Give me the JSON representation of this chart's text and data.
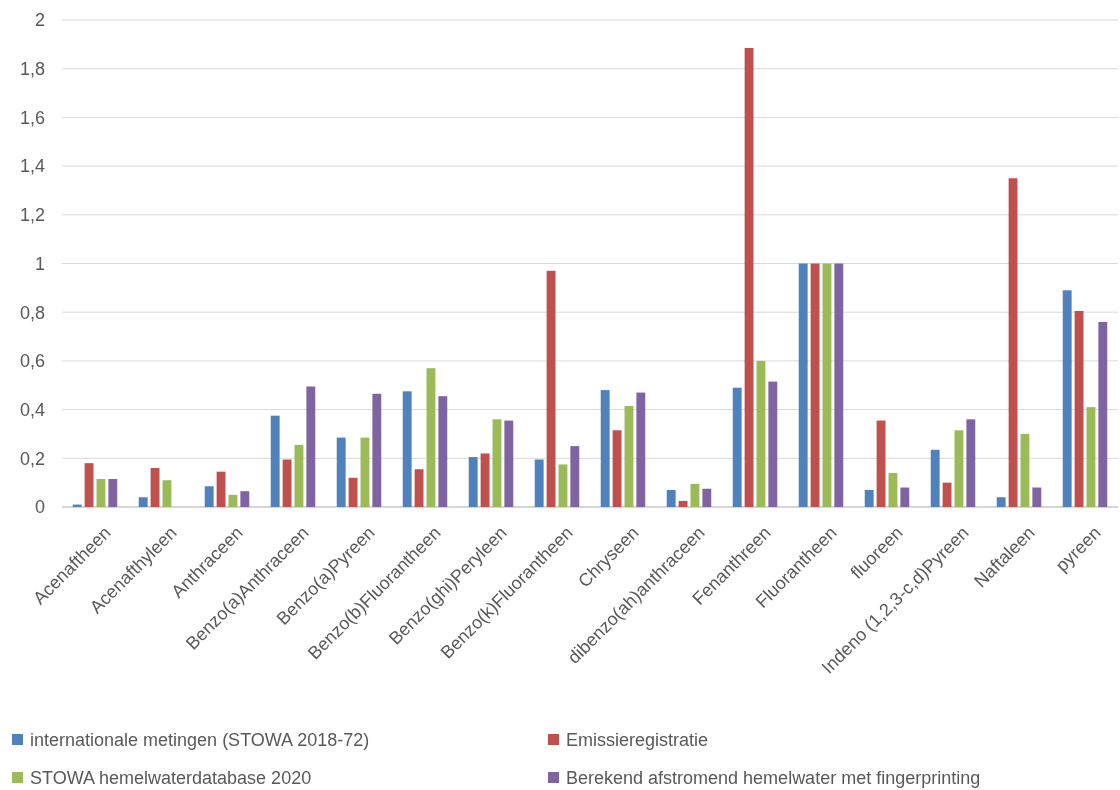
{
  "chart_data": {
    "type": "bar",
    "categories": [
      "Acenaftheen",
      "Acenafthyleen",
      "Anthraceen",
      "Benzo(a)Anthraceen",
      "Benzo(a)Pyreen",
      "Benzo(b)Fluorantheen",
      "Benzo(ghi)Peryleen",
      "Benzo(k)Fluorantheen",
      "Chryseen",
      "dibenzo(ah)anthraceen",
      "Fenanthreen",
      "Fluorantheen",
      "fluoreen",
      "Indeno (1,2,3-c,d)Pyreen",
      "Naftaleen",
      "pyreen"
    ],
    "series": [
      {
        "name": "internationale metingen (STOWA 2018-72)",
        "color": "#4f81bd",
        "values": [
          0.01,
          0.04,
          0.085,
          0.375,
          0.285,
          0.475,
          0.205,
          0.195,
          0.48,
          0.07,
          0.49,
          1,
          0.07,
          0.235,
          0.04,
          0.89
        ]
      },
      {
        "name": "Emissieregistratie",
        "color": "#c0504d",
        "values": [
          0.18,
          0.16,
          0.145,
          0.195,
          0.12,
          0.155,
          0.22,
          0.97,
          0.315,
          0.025,
          1.885,
          1,
          0.355,
          0.1,
          1.35,
          0.805
        ]
      },
      {
        "name": "STOWA hemelwaterdatabase 2020",
        "color": "#9bbb59",
        "values": [
          0.115,
          0.11,
          0.05,
          0.255,
          0.285,
          0.57,
          0.36,
          0.175,
          0.415,
          0.095,
          0.6,
          1,
          0.14,
          0.315,
          0.3,
          0.41
        ]
      },
      {
        "name": "Berekend afstromend hemelwater met fingerprinting",
        "color": "#8064a2",
        "values": [
          0.115,
          null,
          0.065,
          0.495,
          0.465,
          0.455,
          0.355,
          0.25,
          0.47,
          0.075,
          0.515,
          1,
          0.08,
          0.36,
          0.08,
          0.76
        ]
      }
    ],
    "ylim": [
      0,
      2
    ],
    "yticks": [
      0,
      {
        "value": 0.2,
        "label": "0,2"
      },
      {
        "value": 0.4,
        "label": "0,4"
      },
      {
        "value": 0.6,
        "label": "0,6"
      },
      {
        "value": 0.8,
        "label": "0,8"
      },
      1,
      {
        "value": 1.2,
        "label": "1,2"
      },
      {
        "value": 1.4,
        "label": "1,4"
      },
      {
        "value": 1.6,
        "label": "1,6"
      },
      {
        "value": 1.8,
        "label": "1,8"
      },
      2
    ],
    "grid": "y",
    "legend": "bottom"
  }
}
